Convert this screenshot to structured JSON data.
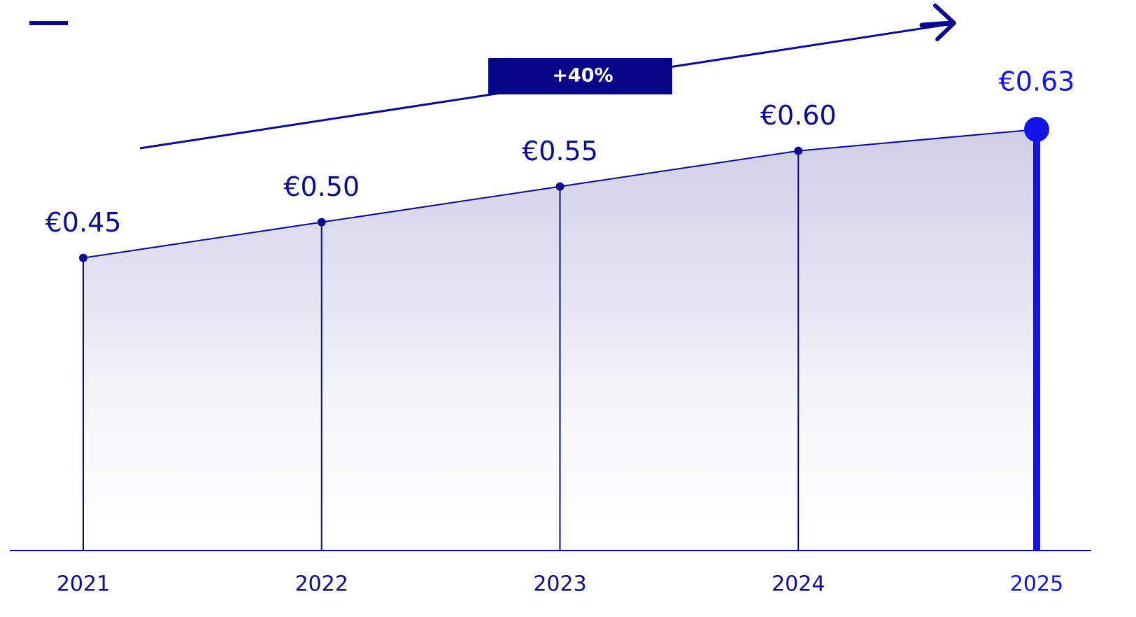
{
  "chart_data": {
    "type": "area",
    "categories": [
      "2021",
      "2022",
      "2023",
      "2024",
      "2025"
    ],
    "values": [
      0.45,
      0.5,
      0.55,
      0.6,
      0.63
    ],
    "value_labels": [
      "€0.45",
      "€0.50",
      "€0.55",
      "€0.60",
      "€0.63"
    ],
    "color": "#0b0b8c",
    "highlight_color": "#1414e6",
    "ylim": [
      0.04,
      0.68
    ],
    "annotation": "+40%"
  }
}
